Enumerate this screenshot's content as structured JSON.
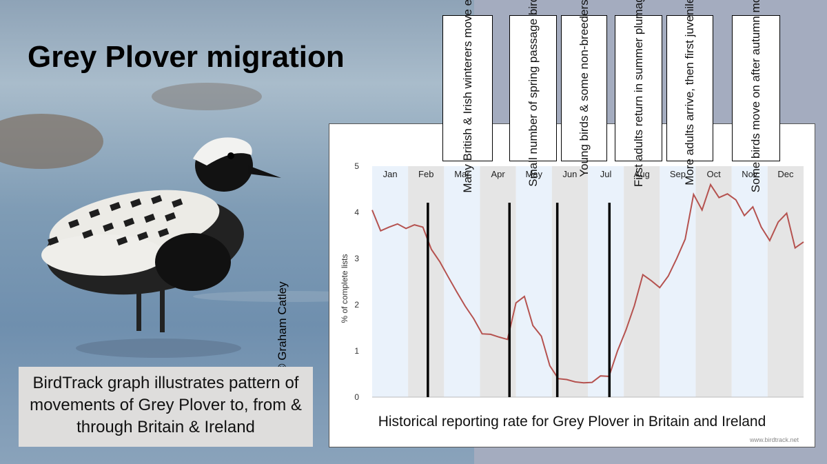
{
  "slide": {
    "title": "Grey Plover migration",
    "credit": "© Graham Catley",
    "caption": "BirdTrack graph illustrates pattern of movements of Grey Plover to, from & through Britain & Ireland"
  },
  "notes": [
    "Many British & Irish winterers move east",
    "Small number of spring passage birds",
    "Young birds & some non-breeders",
    "First adults return in summer plumage",
    "More adults arrive, then first juveniles",
    "Some birds move on after autumn moult"
  ],
  "chart_data": {
    "type": "line",
    "title": "Historical reporting rate for Grey Plover in Britain and Ireland",
    "ylabel": "% of complete lists",
    "ylim": [
      0,
      5
    ],
    "yticks": [
      "0",
      "1",
      "2",
      "3",
      "4",
      "5"
    ],
    "months": [
      "Jan",
      "Feb",
      "Mar",
      "Apr",
      "May",
      "Jun",
      "Jul",
      "Aug",
      "Sep",
      "Oct",
      "Nov",
      "Dec"
    ],
    "x_unit": "month (0 = start of Jan, 12 = end of Dec)",
    "series": [
      {
        "values": [
          4.05,
          3.6,
          3.68,
          3.75,
          3.65,
          3.73,
          3.68,
          3.2,
          2.93,
          2.6,
          2.28,
          1.97,
          1.7,
          1.37,
          1.36,
          1.3,
          1.25,
          2.04,
          2.18,
          1.55,
          1.32,
          0.68,
          0.4,
          0.38,
          0.33,
          0.31,
          0.32,
          0.46,
          0.45,
          1.0,
          1.45,
          1.98,
          2.65,
          2.52,
          2.37,
          2.62,
          3.0,
          3.42,
          4.39,
          4.05,
          4.6,
          4.32,
          4.4,
          4.27,
          3.93,
          4.12,
          3.68,
          3.39,
          3.79,
          3.98,
          3.23,
          3.36
        ]
      }
    ],
    "line_color": "#b5524f",
    "dividers_month": [
      1.55,
      3.82,
      5.15,
      6.6
    ],
    "watermark": "www.birdtrack.net"
  }
}
